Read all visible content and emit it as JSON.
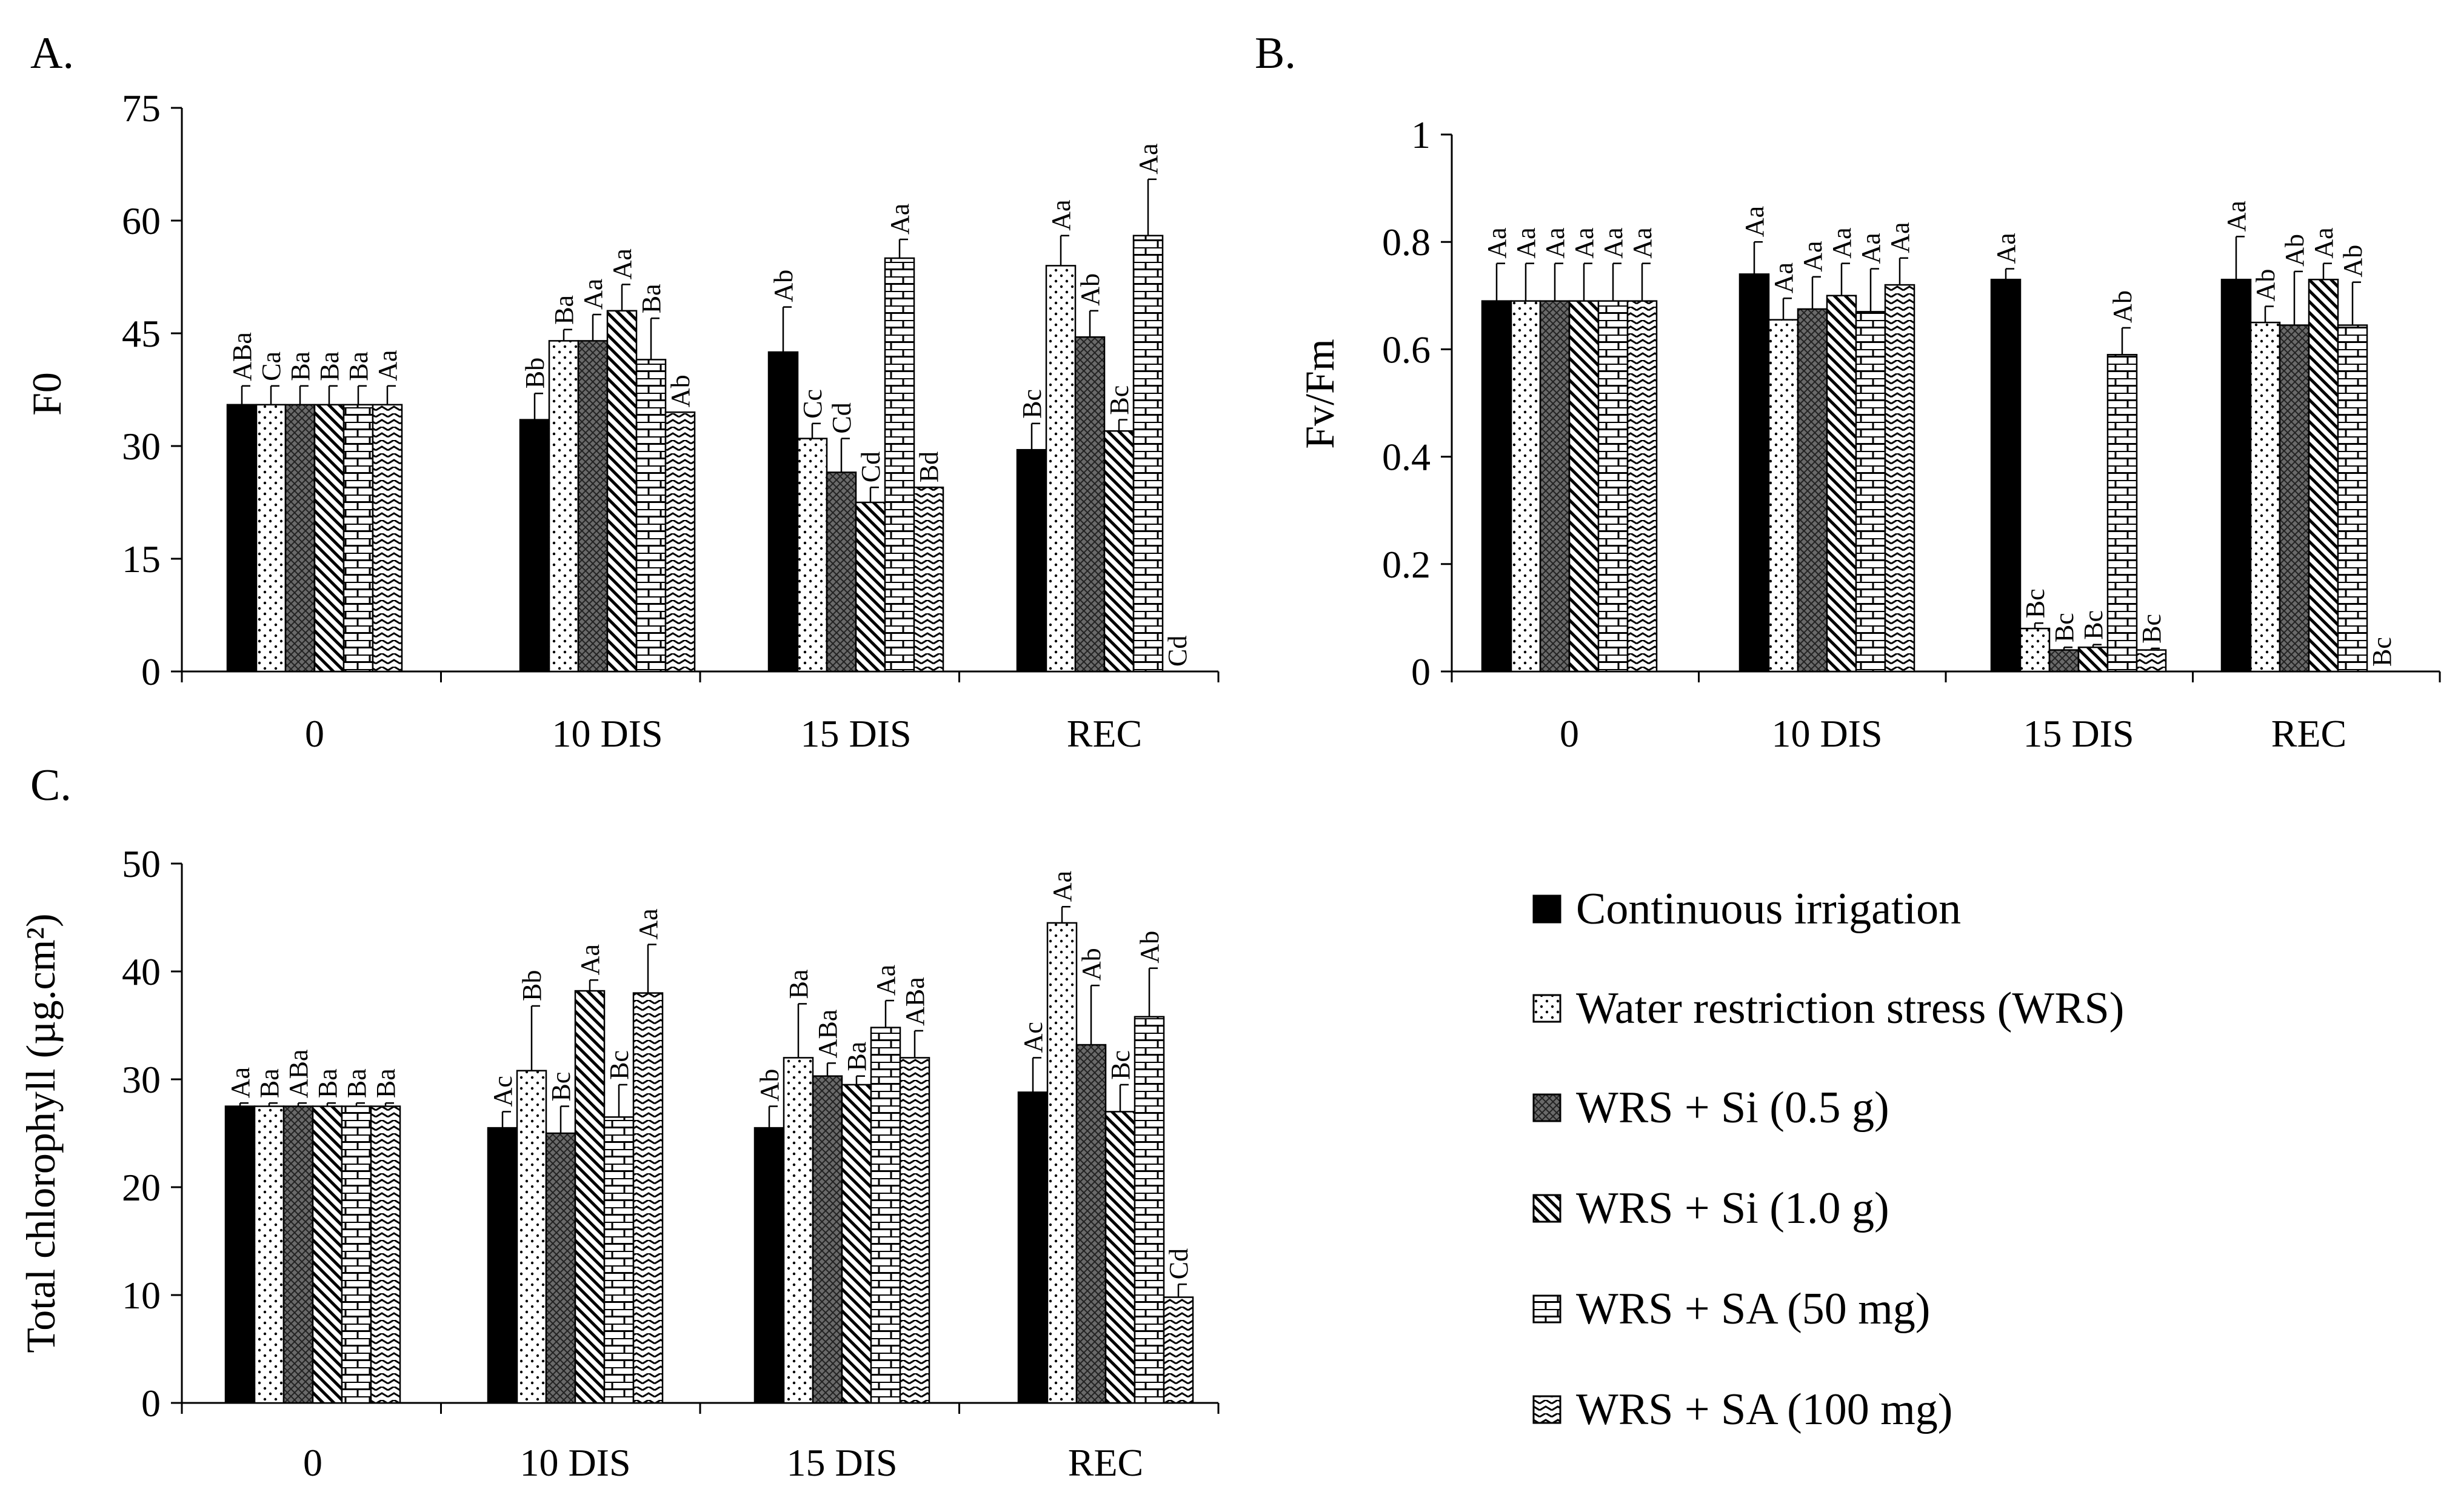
{
  "series_names": [
    "Continuous irrigation",
    "Water restriction stress (WRS)",
    "WRS + Si (0.5 g)",
    "WRS + Si (1.0 g)",
    "WRS + SA (50 mg)",
    "WRS + SA (100 mg)"
  ],
  "series_patterns": [
    "solid",
    "dots",
    "crosshatch",
    "diagonal",
    "brick",
    "zigzag"
  ],
  "colors": {
    "ink": "#000000",
    "background": "#ffffff"
  },
  "chart_data": [
    {
      "type": "bar",
      "panel_label": "A.",
      "ylabel": "F0",
      "categories": [
        "0",
        "10 DIS",
        "15 DIS",
        "REC"
      ],
      "ylim": [
        0,
        75
      ],
      "yticks": [
        0,
        15,
        30,
        45,
        60,
        75
      ],
      "ytick_labels": [
        "0",
        "15",
        "30",
        "45",
        "60",
        "75"
      ],
      "series": [
        {
          "name": "Continuous irrigation",
          "values": [
            35.5,
            33.5,
            42.5,
            29.5
          ],
          "errors": [
            2.5,
            3.5,
            6.0,
            3.5
          ],
          "letters": [
            "ABa",
            "Bb",
            "Ab",
            "Bc"
          ]
        },
        {
          "name": "Water restriction stress (WRS)",
          "values": [
            35.5,
            44.0,
            31.0,
            54.0
          ],
          "errors": [
            2.5,
            1.5,
            2.0,
            4.0
          ],
          "letters": [
            "Ca",
            "Ba",
            "Cc",
            "Aa"
          ]
        },
        {
          "name": "WRS + Si (0.5 g)",
          "values": [
            35.5,
            44.0,
            26.5,
            44.5
          ],
          "errors": [
            2.5,
            3.5,
            4.5,
            3.5
          ],
          "letters": [
            "Ba",
            "Aa",
            "Cd",
            "Ab"
          ]
        },
        {
          "name": "WRS + Si (1.0 g)",
          "values": [
            35.5,
            48.0,
            22.5,
            32.0
          ],
          "errors": [
            2.5,
            3.5,
            2.0,
            1.5
          ],
          "letters": [
            "Ba",
            "Aa",
            "Cd",
            "Bc"
          ]
        },
        {
          "name": "WRS + SA (50 mg)",
          "values": [
            35.5,
            41.5,
            55.0,
            58.0
          ],
          "errors": [
            2.5,
            5.5,
            2.5,
            7.5
          ],
          "letters": [
            "Ba",
            "Ba",
            "Aa",
            "Aa"
          ]
        },
        {
          "name": "WRS + SA (100 mg)",
          "values": [
            35.5,
            34.5,
            24.5,
            0
          ],
          "errors": [
            2.5,
            0,
            0,
            0
          ],
          "letters": [
            "Aa",
            "Ab",
            "Bd",
            "Cd"
          ]
        }
      ]
    },
    {
      "type": "bar",
      "panel_label": "B.",
      "ylabel": "Fv/Fm",
      "categories": [
        "0",
        "10 DIS",
        "15 DIS",
        "REC"
      ],
      "ylim": [
        0,
        1
      ],
      "yticks": [
        0,
        0.2,
        0.4,
        0.6,
        0.8,
        1
      ],
      "ytick_labels": [
        "0",
        "0.2",
        "0.4",
        "0.6",
        "0.8",
        "1"
      ],
      "series": [
        {
          "name": "Continuous irrigation",
          "values": [
            0.69,
            0.74,
            0.73,
            0.73
          ],
          "errors": [
            0.07,
            0.06,
            0.02,
            0.08
          ],
          "letters": [
            "Aa",
            "Aa",
            "Aa",
            "Aa"
          ]
        },
        {
          "name": "Water restriction stress (WRS)",
          "values": [
            0.69,
            0.655,
            0.08,
            0.65
          ],
          "errors": [
            0.07,
            0.04,
            0.01,
            0.03
          ],
          "letters": [
            "Aa",
            "Aa",
            "Bc",
            "Ab"
          ]
        },
        {
          "name": "WRS + Si (0.5 g)",
          "values": [
            0.69,
            0.675,
            0.04,
            0.645
          ],
          "errors": [
            0.07,
            0.06,
            0.005,
            0.1
          ],
          "letters": [
            "Aa",
            "Aa",
            "Bc",
            "Ab"
          ]
        },
        {
          "name": "WRS + Si (1.0 g)",
          "values": [
            0.69,
            0.7,
            0.045,
            0.73
          ],
          "errors": [
            0.07,
            0.06,
            0.005,
            0.03
          ],
          "letters": [
            "Aa",
            "Aa",
            "Bc",
            "Aa"
          ]
        },
        {
          "name": "WRS + SA (50 mg)",
          "values": [
            0.69,
            0.67,
            0.59,
            0.645
          ],
          "errors": [
            0.07,
            0.08,
            0.05,
            0.08
          ],
          "letters": [
            "Aa",
            "Aa",
            "Ab",
            "Ab"
          ]
        },
        {
          "name": "WRS + SA (100 mg)",
          "values": [
            0.69,
            0.72,
            0.04,
            0
          ],
          "errors": [
            0.07,
            0.05,
            0.003,
            0
          ],
          "letters": [
            "Aa",
            "Aa",
            "Bc",
            "Bc"
          ]
        }
      ]
    },
    {
      "type": "bar",
      "panel_label": "C.",
      "ylabel": "Total chlorophyll  (µg.cm²)",
      "categories": [
        "0",
        "10 DIS",
        "15 DIS",
        "REC"
      ],
      "ylim": [
        0,
        50
      ],
      "yticks": [
        0,
        10,
        20,
        30,
        40,
        50
      ],
      "ytick_labels": [
        "0",
        "10",
        "20",
        "30",
        "40",
        "50"
      ],
      "series": [
        {
          "name": "Continuous irrigation",
          "values": [
            27.5,
            25.5,
            25.5,
            28.8
          ],
          "errors": [
            0.3,
            1.5,
            2.0,
            3.2
          ],
          "letters": [
            "Aa",
            "Ac",
            "Ab",
            "Ac"
          ]
        },
        {
          "name": "Water restriction stress (WRS)",
          "values": [
            27.5,
            30.8,
            32.0,
            44.5
          ],
          "errors": [
            0.3,
            6.0,
            5.0,
            1.5
          ],
          "letters": [
            "Ba",
            "Bb",
            "Ba",
            "Aa"
          ]
        },
        {
          "name": "WRS + Si (0.5 g)",
          "values": [
            27.5,
            25.0,
            30.3,
            33.2
          ],
          "errors": [
            0.3,
            2.5,
            1.2,
            5.5
          ],
          "letters": [
            "ABa",
            "Bc",
            "ABa",
            "Ab"
          ]
        },
        {
          "name": "WRS + Si (1.0 g)",
          "values": [
            27.5,
            38.2,
            29.5,
            27.0
          ],
          "errors": [
            0.3,
            1.0,
            0.8,
            2.5
          ],
          "letters": [
            "Ba",
            "Aa",
            "Ba",
            "Bc"
          ]
        },
        {
          "name": "WRS + SA (50 mg)",
          "values": [
            27.5,
            26.5,
            34.8,
            35.8
          ],
          "errors": [
            0.3,
            3.0,
            2.5,
            4.5
          ],
          "letters": [
            "Ba",
            "Bc",
            "Aa",
            "Ab"
          ]
        },
        {
          "name": "WRS + SA (100 mg)",
          "values": [
            27.5,
            38.0,
            32.0,
            9.8
          ],
          "errors": [
            0.3,
            4.5,
            2.5,
            1.2
          ],
          "letters": [
            "Ba",
            "Aa",
            "ABa",
            "Cd"
          ]
        }
      ]
    }
  ]
}
